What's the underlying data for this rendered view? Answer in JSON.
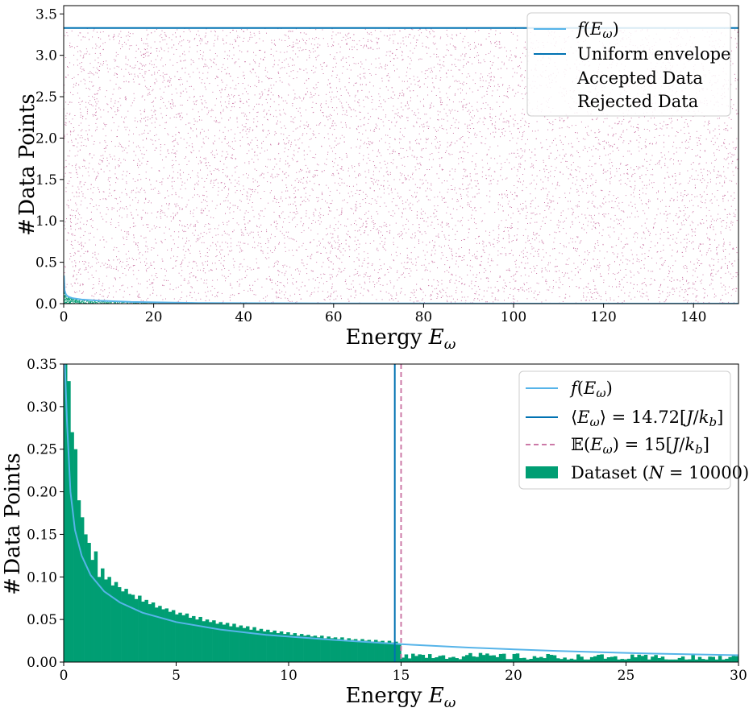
{
  "chart_data": [
    {
      "type": "scatter",
      "xlabel": "Energy E_ω",
      "ylabel": "# Data Points",
      "xlim": [
        0,
        150
      ],
      "ylim": [
        0,
        3.6
      ],
      "x_ticks": [
        "0",
        "20",
        "40",
        "60",
        "80",
        "100",
        "120",
        "140"
      ],
      "y_ticks": [
        "0.0",
        "0.5",
        "1.0",
        "1.5",
        "2.0",
        "2.5",
        "3.0",
        "3.5"
      ],
      "envelope_value": 3.33,
      "curve": {
        "x": [
          0.05,
          0.2,
          0.5,
          1,
          2,
          4,
          8,
          15,
          30,
          60,
          100,
          150
        ],
        "y": [
          0.34,
          0.16,
          0.11,
          0.085,
          0.065,
          0.05,
          0.035,
          0.02,
          0.008,
          0.003,
          0.001,
          0.0005
        ]
      },
      "legend": {
        "position": "top-right",
        "entries": [
          {
            "label": "f(E_ω)",
            "style": "line",
            "color": "#56B4E9"
          },
          {
            "label": "Uniform envelope",
            "style": "line",
            "color": "#0072B2"
          },
          {
            "label": "Accepted Data",
            "style": "marker",
            "color": "#009E73"
          },
          {
            "label": "Rejected Data",
            "style": "marker",
            "color": "#CC79A7"
          }
        ]
      },
      "colors": {
        "curve": "#56B4E9",
        "envelope": "#0072B2",
        "accepted": "#009E73",
        "rejected": "#CC79A7"
      }
    },
    {
      "type": "bar",
      "xlabel": "Energy E_ω",
      "ylabel": "# Data Points",
      "xlim": [
        0,
        30
      ],
      "ylim": [
        0,
        0.35
      ],
      "x_ticks": [
        "0",
        "5",
        "10",
        "15",
        "20",
        "25",
        "30"
      ],
      "y_ticks": [
        "0.00",
        "0.05",
        "0.10",
        "0.15",
        "0.20",
        "0.25",
        "0.30",
        "0.35"
      ],
      "bin_width": 0.15,
      "mean_line_x": 14.72,
      "expected_line_x": 15,
      "histogram_values": [
        0.35,
        0.33,
        0.27,
        0.25,
        0.19,
        0.17,
        0.15,
        0.14,
        0.12,
        0.13,
        0.1,
        0.11,
        0.097,
        0.1,
        0.09,
        0.094,
        0.088,
        0.083,
        0.086,
        0.08,
        0.079,
        0.074,
        0.078,
        0.071,
        0.073,
        0.068,
        0.07,
        0.064,
        0.066,
        0.062,
        0.063,
        0.059,
        0.061,
        0.056,
        0.058,
        0.055,
        0.057,
        0.052,
        0.054,
        0.05,
        0.053,
        0.048,
        0.05,
        0.047,
        0.049,
        0.045,
        0.047,
        0.044,
        0.046,
        0.042,
        0.045,
        0.041,
        0.043,
        0.04,
        0.042,
        0.038,
        0.041,
        0.037,
        0.039,
        0.036,
        0.038,
        0.035,
        0.037,
        0.034,
        0.036,
        0.033,
        0.035,
        0.032,
        0.034,
        0.031,
        0.033,
        0.031,
        0.032,
        0.03,
        0.031,
        0.029,
        0.031,
        0.028,
        0.03,
        0.028,
        0.029,
        0.027,
        0.029,
        0.026,
        0.028,
        0.026,
        0.027,
        0.025,
        0.027,
        0.025,
        0.026,
        0.024,
        0.026,
        0.024,
        0.025,
        0.023,
        0.025,
        0.023,
        0.024,
        0.022
      ],
      "curve": {
        "x": [
          0.05,
          0.15,
          0.3,
          0.5,
          0.8,
          1.2,
          1.8,
          2.5,
          3.5,
          5,
          7,
          9,
          12,
          15,
          18,
          22,
          26,
          30
        ],
        "y": [
          0.35,
          0.28,
          0.2,
          0.155,
          0.125,
          0.102,
          0.083,
          0.07,
          0.058,
          0.047,
          0.038,
          0.032,
          0.026,
          0.021,
          0.017,
          0.013,
          0.01,
          0.008
        ]
      },
      "legend": {
        "position": "top-right",
        "entries": [
          {
            "label": "f(E_ω)",
            "style": "line",
            "color": "#56B4E9"
          },
          {
            "label": "⟨E_ω⟩ = 14.72[J/k_b]",
            "style": "line",
            "color": "#0072B2"
          },
          {
            "label": "𝔼(E_ω) = 15[J/k_b]",
            "style": "dashed",
            "color": "#CC79A7"
          },
          {
            "label": "Dataset (N = 10000)",
            "style": "patch",
            "color": "#009E73"
          }
        ]
      },
      "colors": {
        "bars": "#009E73",
        "curve": "#56B4E9",
        "mean": "#0072B2",
        "expected": "#CC79A7"
      }
    }
  ]
}
